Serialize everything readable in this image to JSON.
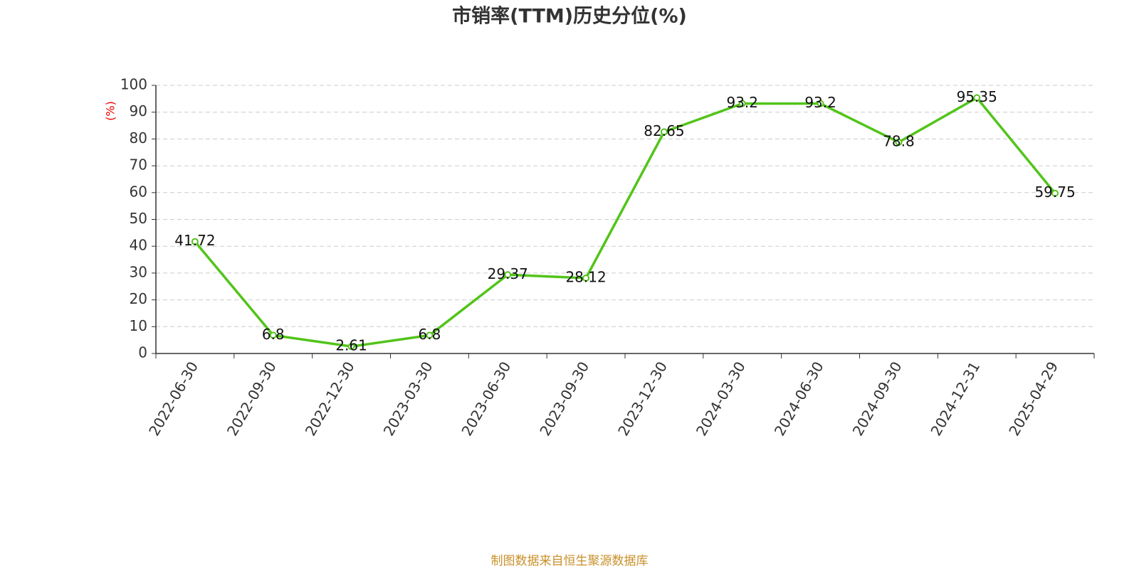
{
  "chart_data": {
    "type": "line",
    "title": "市销率(TTM)历史分位(%)",
    "y_label": "(%)",
    "categories": [
      "2022-06-30",
      "2022-09-30",
      "2022-12-30",
      "2023-03-30",
      "2023-06-30",
      "2023-09-30",
      "2023-12-30",
      "2024-03-30",
      "2024-06-30",
      "2024-09-30",
      "2024-12-31",
      "2025-04-29"
    ],
    "series": [
      {
        "name": "市销率(TTM)历史分位",
        "color": "#52c41a",
        "values": [
          41.72,
          6.8,
          2.61,
          6.8,
          29.37,
          28.12,
          82.65,
          93.2,
          93.2,
          78.8,
          95.35,
          59.75
        ]
      }
    ],
    "ylim": [
      0,
      100
    ],
    "yticks": [
      0,
      10,
      20,
      30,
      40,
      50,
      60,
      70,
      80,
      90,
      100
    ],
    "grid": true,
    "source": "制图数据来自恒生聚源数据库"
  }
}
